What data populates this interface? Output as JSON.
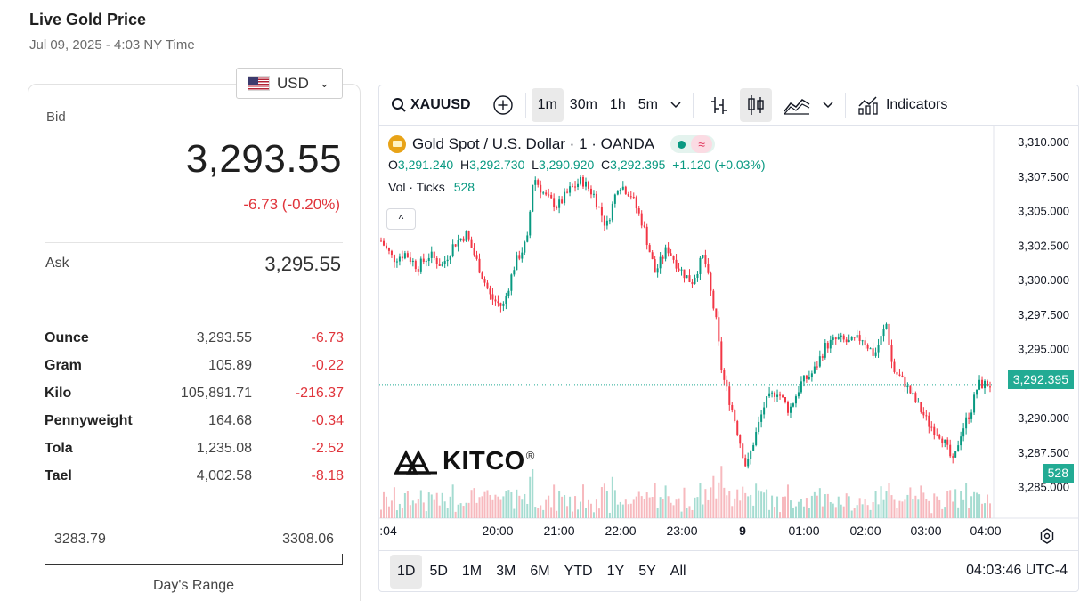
{
  "header": {
    "title": "Live Gold Price",
    "subtitle": "Jul 09, 2025 - 4:03 NY Time"
  },
  "currency": {
    "selected": "USD",
    "icon": "us-flag-icon"
  },
  "quote": {
    "bid_label": "Bid",
    "bid": "3,293.55",
    "change": "-6.73 (-0.20%)",
    "ask_label": "Ask",
    "ask": "3,295.55"
  },
  "units": [
    {
      "name": "Ounce",
      "price": "3,293.55",
      "change": "-6.73"
    },
    {
      "name": "Gram",
      "price": "105.89",
      "change": "-0.22"
    },
    {
      "name": "Kilo",
      "price": "105,891.71",
      "change": "-216.37"
    },
    {
      "name": "Pennyweight",
      "price": "164.68",
      "change": "-0.34"
    },
    {
      "name": "Tola",
      "price": "1,235.08",
      "change": "-2.52"
    },
    {
      "name": "Tael",
      "price": "4,002.58",
      "change": "-8.18"
    }
  ],
  "day_range": {
    "low": "3283.79",
    "high": "3308.06",
    "label": "Day's Range"
  },
  "colors": {
    "up": "#089981",
    "down": "#f23645",
    "down_text": "#e0343b",
    "accent": "#22ab94"
  },
  "toolbar": {
    "symbol": "XAUUSD",
    "intervals": [
      "1m",
      "30m",
      "1h",
      "5m"
    ],
    "active_interval": "1m",
    "indicators_label": "Indicators"
  },
  "chart": {
    "legend_title": "Gold Spot / U.S. Dollar · 1 · OANDA",
    "wave_symbol": "≈",
    "ohlc": {
      "o_label": "O",
      "o": "3,291.240",
      "h_label": "H",
      "h": "3,292.730",
      "l_label": "L",
      "l": "3,290.920",
      "c_label": "C",
      "c": "3,292.395",
      "chg": "+1.120 (+0.03%)"
    },
    "volume_label": "Vol · Ticks",
    "volume_value": "528",
    "last_price_tag": "3,292.395",
    "volume_tag": "528",
    "logo_text": "KITCO",
    "logo_mark": "®",
    "collapse_glyph": "^"
  },
  "chart_data": {
    "type": "candlestick",
    "y_ticks": [
      "3,310.000",
      "3,307.500",
      "3,305.000",
      "3,302.500",
      "3,300.000",
      "3,297.500",
      "3,295.000",
      "3,292.500",
      "3,290.000",
      "3,287.500",
      "3,285.000"
    ],
    "x_ticks": [
      ":04",
      "20:00",
      "21:00",
      "22:00",
      "23:00",
      "9",
      "01:00",
      "02:00",
      "03:00",
      "04:00"
    ],
    "ylim": [
      3285.0,
      3310.0
    ],
    "last_price": 3292.395,
    "price_path": [
      [
        0,
        3302.8
      ],
      [
        0.02,
        3301.5
      ],
      [
        0.04,
        3301.9
      ],
      [
        0.06,
        3300.9
      ],
      [
        0.08,
        3301.8
      ],
      [
        0.1,
        3301.0
      ],
      [
        0.12,
        3302.6
      ],
      [
        0.14,
        3303.3
      ],
      [
        0.16,
        3301.0
      ],
      [
        0.18,
        3298.7
      ],
      [
        0.2,
        3298.0
      ],
      [
        0.22,
        3301.2
      ],
      [
        0.24,
        3302.8
      ],
      [
        0.25,
        3307.5
      ],
      [
        0.27,
        3306.0
      ],
      [
        0.29,
        3305.3
      ],
      [
        0.31,
        3306.5
      ],
      [
        0.33,
        3307.2
      ],
      [
        0.35,
        3306.1
      ],
      [
        0.37,
        3303.8
      ],
      [
        0.39,
        3307.0
      ],
      [
        0.41,
        3306.2
      ],
      [
        0.43,
        3304.0
      ],
      [
        0.45,
        3300.5
      ],
      [
        0.47,
        3302.3
      ],
      [
        0.49,
        3300.8
      ],
      [
        0.51,
        3299.8
      ],
      [
        0.53,
        3301.8
      ],
      [
        0.55,
        3297.0
      ],
      [
        0.56,
        3293.2
      ],
      [
        0.58,
        3290.0
      ],
      [
        0.6,
        3286.3
      ],
      [
        0.61,
        3288.0
      ],
      [
        0.63,
        3291.0
      ],
      [
        0.65,
        3292.0
      ],
      [
        0.67,
        3290.5
      ],
      [
        0.69,
        3292.5
      ],
      [
        0.71,
        3293.3
      ],
      [
        0.73,
        3295.2
      ],
      [
        0.75,
        3295.7
      ],
      [
        0.77,
        3295.4
      ],
      [
        0.79,
        3295.8
      ],
      [
        0.81,
        3294.5
      ],
      [
        0.83,
        3296.8
      ],
      [
        0.84,
        3293.5
      ],
      [
        0.86,
        3292.5
      ],
      [
        0.88,
        3291.0
      ],
      [
        0.9,
        3289.5
      ],
      [
        0.92,
        3288.7
      ],
      [
        0.94,
        3286.6
      ],
      [
        0.95,
        3288.7
      ],
      [
        0.97,
        3290.7
      ],
      [
        0.98,
        3292.4
      ],
      [
        1.0,
        3292.4
      ]
    ]
  }
}
